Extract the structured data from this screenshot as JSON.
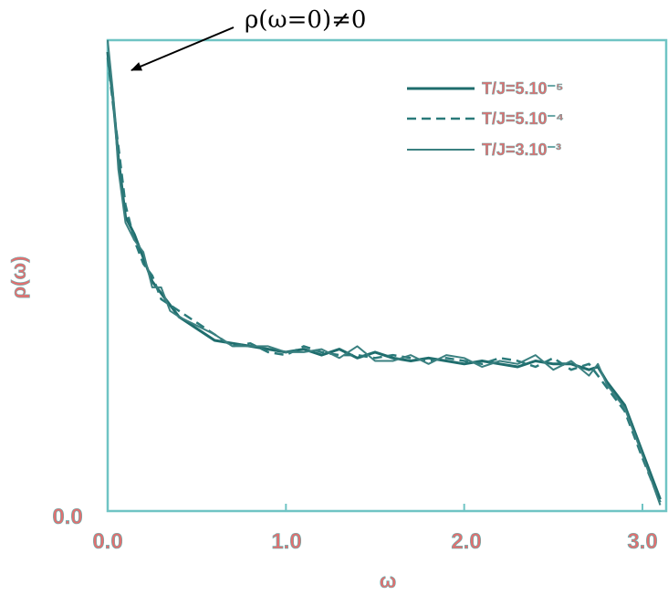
{
  "chart_data": {
    "type": "line",
    "title": "",
    "xlabel": "ω",
    "ylabel": "ρ(ω)",
    "xlim": [
      0.0,
      3.1
    ],
    "xticks": [
      "0.0",
      "1.0",
      "2.0",
      "3.0"
    ],
    "yticks": [
      "0.0"
    ],
    "grid": false,
    "legend_position": "top-right",
    "annotation": {
      "text": "ρ(ω=0)≠0",
      "points_to": [
        0.0,
        0.78
      ]
    },
    "colors": {
      "line": "#1f6d6d",
      "axis": "#6fc4c4",
      "label": "#e07070"
    },
    "series": [
      {
        "name": "T/J=5.10⁻⁵",
        "style": "solid",
        "x": [
          0.0,
          0.03,
          0.06,
          0.1,
          0.15,
          0.2,
          0.25,
          0.3,
          0.35,
          0.4,
          0.5,
          0.6,
          0.7,
          0.8,
          0.9,
          1.0,
          1.1,
          1.2,
          1.3,
          1.4,
          1.5,
          1.6,
          1.7,
          1.8,
          1.9,
          2.0,
          2.1,
          2.2,
          2.3,
          2.4,
          2.5,
          2.6,
          2.7,
          2.75,
          2.8,
          2.9,
          3.0,
          3.1
        ],
        "y": [
          0.78,
          0.7,
          0.6,
          0.5,
          0.47,
          0.43,
          0.39,
          0.37,
          0.35,
          0.33,
          0.31,
          0.29,
          0.285,
          0.28,
          0.275,
          0.27,
          0.275,
          0.265,
          0.275,
          0.26,
          0.27,
          0.26,
          0.255,
          0.26,
          0.255,
          0.25,
          0.255,
          0.25,
          0.245,
          0.255,
          0.25,
          0.25,
          0.24,
          0.245,
          0.22,
          0.18,
          0.1,
          0.02
        ]
      },
      {
        "name": "T/J=5.10⁻⁴",
        "style": "dashed",
        "x": [
          0.0,
          0.03,
          0.06,
          0.1,
          0.15,
          0.2,
          0.25,
          0.3,
          0.35,
          0.4,
          0.5,
          0.6,
          0.7,
          0.8,
          0.9,
          1.0,
          1.1,
          1.2,
          1.3,
          1.4,
          1.5,
          1.6,
          1.7,
          1.8,
          1.9,
          2.0,
          2.1,
          2.2,
          2.3,
          2.4,
          2.5,
          2.6,
          2.7,
          2.75,
          2.8,
          2.9,
          3.0,
          3.1
        ],
        "y": [
          0.77,
          0.69,
          0.62,
          0.52,
          0.46,
          0.42,
          0.4,
          0.36,
          0.35,
          0.34,
          0.32,
          0.3,
          0.28,
          0.285,
          0.27,
          0.265,
          0.28,
          0.27,
          0.265,
          0.265,
          0.26,
          0.265,
          0.26,
          0.255,
          0.26,
          0.255,
          0.25,
          0.26,
          0.255,
          0.245,
          0.26,
          0.24,
          0.25,
          0.23,
          0.21,
          0.17,
          0.09,
          0.015
        ]
      },
      {
        "name": "T/J=3.10⁻³",
        "style": "solid-thin",
        "x": [
          0.0,
          0.03,
          0.06,
          0.1,
          0.15,
          0.2,
          0.25,
          0.3,
          0.35,
          0.4,
          0.5,
          0.6,
          0.7,
          0.8,
          0.9,
          1.0,
          1.1,
          1.2,
          1.3,
          1.4,
          1.5,
          1.6,
          1.7,
          1.8,
          1.9,
          2.0,
          2.1,
          2.2,
          2.3,
          2.4,
          2.5,
          2.6,
          2.7,
          2.75,
          2.8,
          2.9,
          3.0,
          3.1
        ],
        "y": [
          0.8,
          0.71,
          0.58,
          0.49,
          0.46,
          0.44,
          0.38,
          0.38,
          0.34,
          0.33,
          0.315,
          0.3,
          0.28,
          0.28,
          0.28,
          0.27,
          0.27,
          0.275,
          0.26,
          0.28,
          0.255,
          0.255,
          0.265,
          0.25,
          0.265,
          0.26,
          0.245,
          0.255,
          0.25,
          0.265,
          0.24,
          0.255,
          0.23,
          0.25,
          0.215,
          0.175,
          0.095,
          0.01
        ]
      }
    ]
  }
}
